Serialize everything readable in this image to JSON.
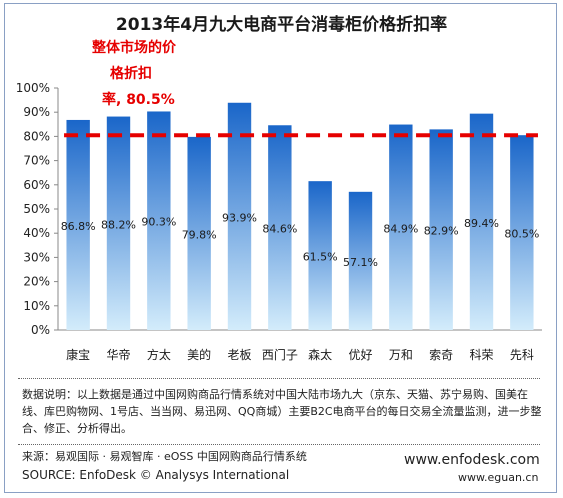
{
  "chart_data": {
    "type": "bar",
    "title": "2013年4月九大电商平台消毒柜价格折扣率",
    "categories": [
      "康宝",
      "华帝",
      "方太",
      "美的",
      "老板",
      "西门子",
      "森太",
      "优好",
      "万和",
      "索奇",
      "科荣",
      "先科"
    ],
    "values": [
      86.8,
      88.2,
      90.3,
      79.8,
      93.9,
      84.6,
      61.5,
      57.1,
      84.9,
      82.9,
      89.4,
      80.5
    ],
    "value_labels": [
      "86.8%",
      "88.2%",
      "90.3%",
      "79.8%",
      "93.9%",
      "84.6%",
      "61.5%",
      "57.1%",
      "84.9%",
      "82.9%",
      "89.4%",
      "80.5%"
    ],
    "y_ticks": [
      "0%",
      "10%",
      "20%",
      "30%",
      "40%",
      "50%",
      "60%",
      "70%",
      "80%",
      "90%",
      "100%"
    ],
    "ylim": [
      0,
      100
    ],
    "reference_line": 80.5,
    "reference_line_color": "#e60000",
    "bar_color_top": "#1a66c9",
    "bar_color_bottom": "#d3ecfb",
    "annotation_lines": [
      "整体市场的价",
      "格折扣",
      "率, 80.5%"
    ],
    "grid": false
  },
  "notes": "数据说明：以上数据是通过中国网购商品行情系统对中国大陆市场九大（京东、天猫、苏宁易购、国美在线、库巴购物网、1号店、当当网、易迅网、QQ商城）主要B2C电商平台的每日交易全流量监测，进一步整合、修正、分析得出。",
  "source_cn": "来源：易观国际 · 易观智库 · eOSS 中国网购商品行情系统",
  "source_en": "SOURCE: EnfoDesk © Analysys International",
  "url_main": "www.enfodesk.com",
  "url_sub": "www.eguan.cn"
}
